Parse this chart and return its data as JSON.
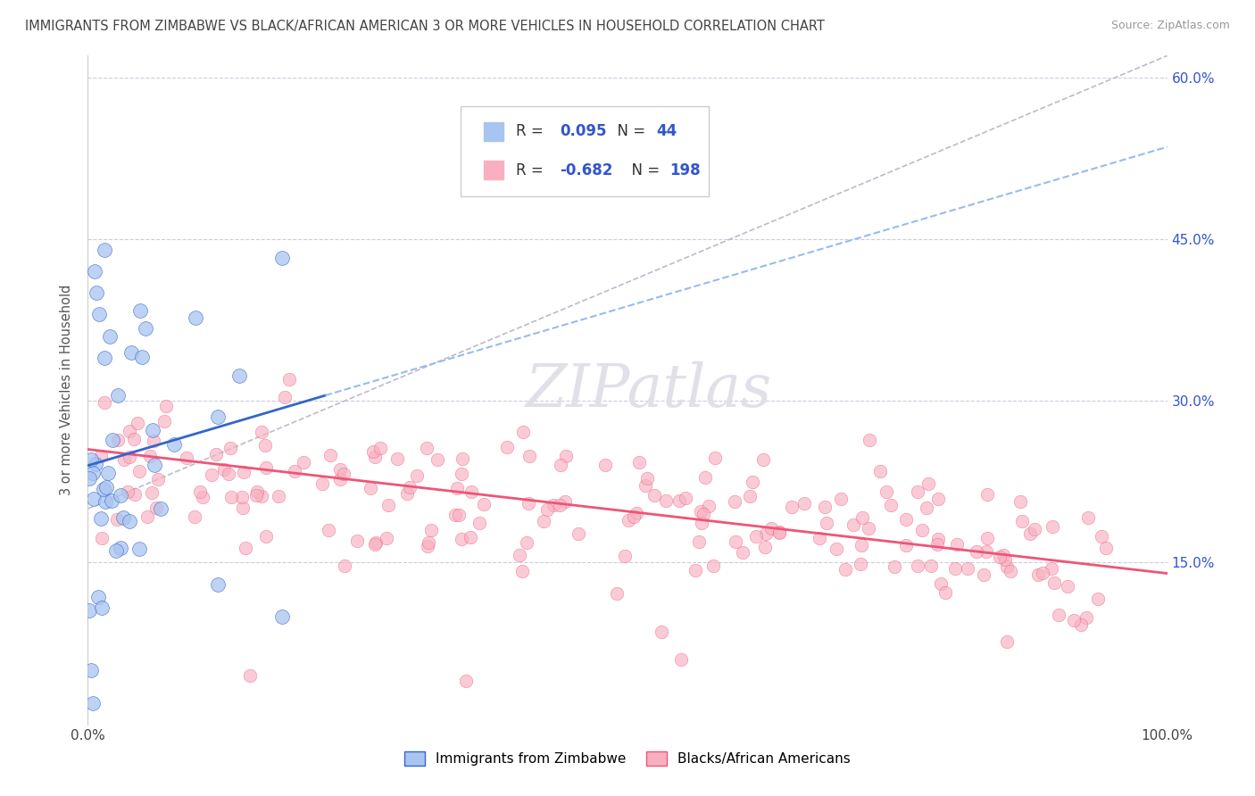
{
  "title": "IMMIGRANTS FROM ZIMBABWE VS BLACK/AFRICAN AMERICAN 3 OR MORE VEHICLES IN HOUSEHOLD CORRELATION CHART",
  "source": "Source: ZipAtlas.com",
  "ylabel": "3 or more Vehicles in Household",
  "r1": 0.095,
  "n1": 44,
  "r2": -0.682,
  "n2": 198,
  "legend_label1": "Immigrants from Zimbabwe",
  "legend_label2": "Blacks/African Americans",
  "dot_color1": "#a8c4f0",
  "dot_color2": "#f8b0c0",
  "line_color1": "#3366cc",
  "line_color2": "#ee5577",
  "dash_line_color": "#99bbee",
  "diag_color": "#bbbbcc",
  "background_color": "#ffffff",
  "stats_color": "#3355cc",
  "grid_color": "#ccccdd",
  "xmin": 0.0,
  "xmax": 100.0,
  "ymin": 0.0,
  "ymax": 62.0,
  "blue_x_max": 22.0,
  "blue_line_x0": 0.0,
  "blue_line_y0": 24.0,
  "blue_line_x1": 22.0,
  "blue_line_y1": 30.5,
  "pink_line_x0": 0.0,
  "pink_line_y0": 25.5,
  "pink_line_x1": 100.0,
  "pink_line_y1": 14.0,
  "diag_line_x0": 0.0,
  "diag_line_y0": 20.0,
  "diag_line_x1": 100.0,
  "diag_line_y1": 62.0
}
